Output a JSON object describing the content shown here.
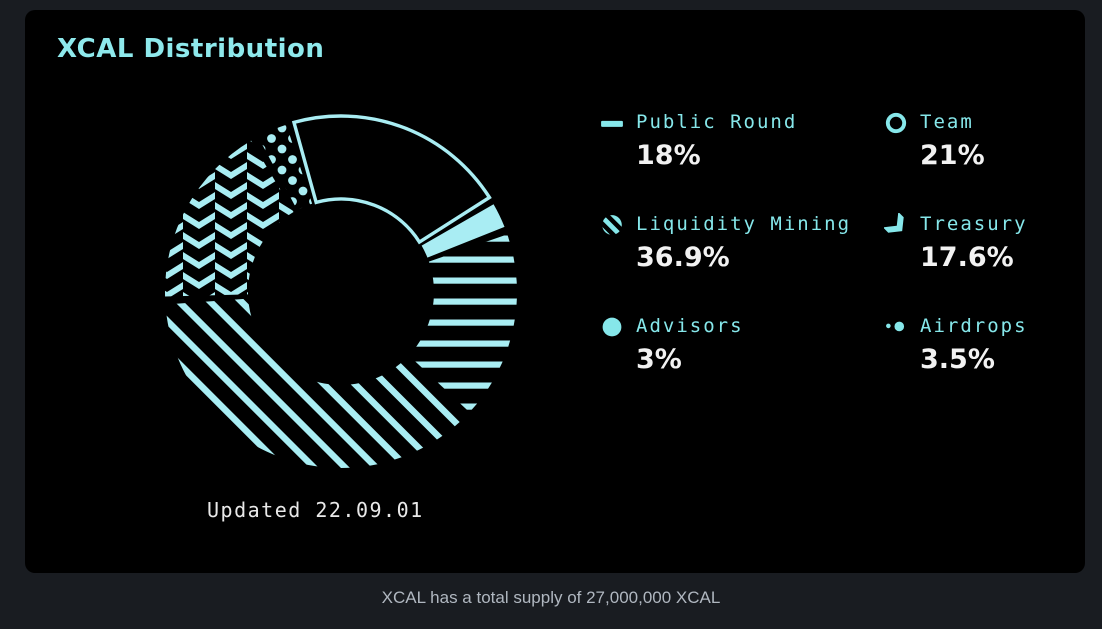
{
  "card": {
    "title": "XCAL Distribution",
    "updated_label": "Updated 22.09.01"
  },
  "chart_data": {
    "type": "donut",
    "title": "XCAL Distribution",
    "updated": "22.09.01",
    "start_angle_deg": -16.8,
    "segment_gap_deg": 1.3,
    "legend_position": "right",
    "segments": [
      {
        "label": "Public Round",
        "value": 18,
        "display": "18%",
        "pattern": "horizontal-stripes",
        "icon": "dash-icon"
      },
      {
        "label": "Team",
        "value": 21,
        "display": "21%",
        "pattern": "outline",
        "icon": "ring-icon"
      },
      {
        "label": "Liquidity Mining",
        "value": 36.9,
        "display": "36.9%",
        "pattern": "diagonal-stripes",
        "icon": "diagonal-circle-icon"
      },
      {
        "label": "Treasury",
        "value": 17.6,
        "display": "17.6%",
        "pattern": "chevron",
        "icon": "chevron-arrow-icon"
      },
      {
        "label": "Advisors",
        "value": 3,
        "display": "3%",
        "pattern": "solid",
        "icon": "filled-circle-icon"
      },
      {
        "label": "Airdrops",
        "value": 3.5,
        "display": "3.5%",
        "pattern": "dots",
        "icon": "dots-icon"
      }
    ],
    "draw_order": [
      1,
      4,
      0,
      2,
      3,
      5
    ]
  },
  "footer": {
    "text": "XCAL has a total supply of 27,000,000 XCAL",
    "total_supply": "27,000,000 XCAL"
  },
  "colors": {
    "accent": "#86e7ea",
    "chart": "#a9edf3",
    "title": "#8ee9ec",
    "value_text": "#f2f2f2",
    "card_background": "#000000",
    "page_background": "#191c21",
    "footer_text": "#b0b7c0"
  }
}
